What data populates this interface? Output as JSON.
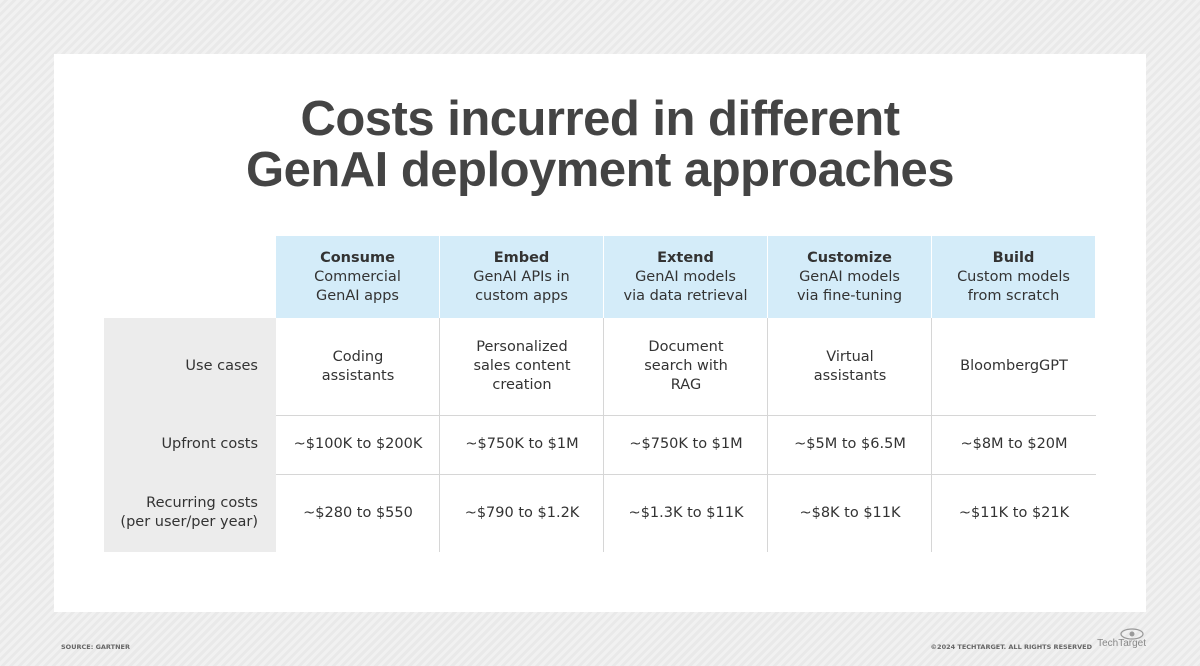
{
  "title": "Costs incurred in different\nGenAI deployment approaches",
  "table": {
    "columns": [
      {
        "name": "Consume",
        "description": "Commercial\nGenAI apps"
      },
      {
        "name": "Embed",
        "description": "GenAI APIs in\ncustom apps"
      },
      {
        "name": "Extend",
        "description": "GenAI models\nvia data retrieval"
      },
      {
        "name": "Customize",
        "description": "GenAI models\nvia fine-tuning"
      },
      {
        "name": "Build",
        "description": "Custom models\nfrom scratch"
      }
    ],
    "rows": [
      {
        "label": "Use cases",
        "cells": [
          "Coding\nassistants",
          "Personalized\nsales content\ncreation",
          "Document\nsearch with\nRAG",
          "Virtual\nassistants",
          "BloombergGPT"
        ]
      },
      {
        "label": "Upfront costs",
        "cells": [
          "~$100K to $200K",
          "~$750K to $1M",
          "~$750K to $1M",
          "~$5M to $6.5M",
          "~$8M to $20M"
        ]
      },
      {
        "label": "Recurring costs\n(per user/per year)",
        "cells": [
          "~$280 to $550",
          "~$790 to $1.2K",
          "~$1.3K to $11K",
          "~$8K to $11K",
          "~$11K to $21K"
        ]
      }
    ]
  },
  "footer": {
    "source": "SOURCE: GARTNER",
    "copyright": "©2024 TECHTARGET. ALL RIGHTS RESERVED",
    "logo": "TechTarget"
  }
}
